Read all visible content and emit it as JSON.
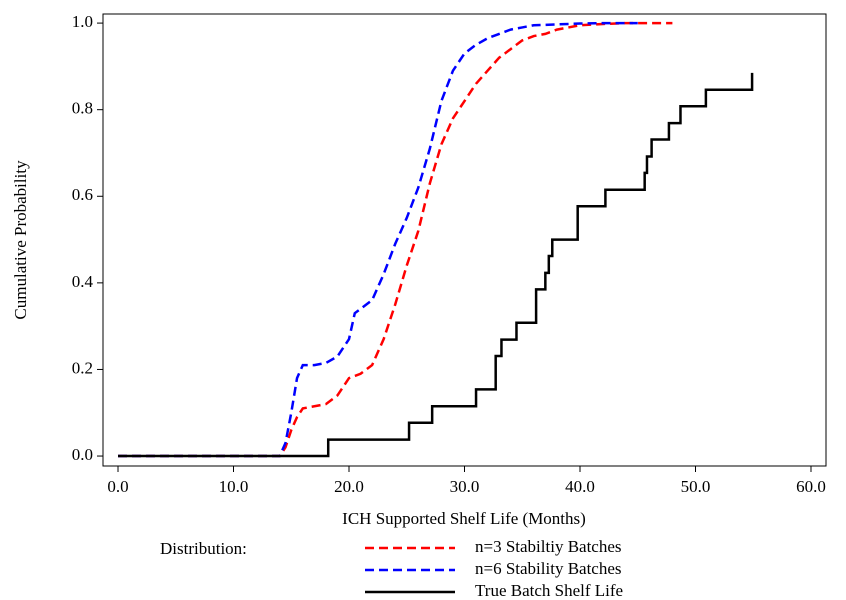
{
  "chart_data": {
    "type": "line",
    "x_label": "ICH Supported Shelf Life (Months)",
    "y_label": "Cumulative Probability",
    "legend_title": "Distribution:",
    "xlim": [
      -1.3,
      61.3
    ],
    "ylim": [
      -0.023,
      1.021
    ],
    "xticks": [
      {
        "value": 0,
        "label": "0.0"
      },
      {
        "value": 10,
        "label": "10.0"
      },
      {
        "value": 20,
        "label": "20.0"
      },
      {
        "value": 30,
        "label": "30.0"
      },
      {
        "value": 40,
        "label": "40.0"
      },
      {
        "value": 50,
        "label": "50.0"
      },
      {
        "value": 60,
        "label": "60.0"
      }
    ],
    "yticks": [
      {
        "value": 0,
        "label": "0.0"
      },
      0.2,
      0.4,
      0.6,
      0.8,
      {
        "value": 1,
        "label": "1.0"
      }
    ],
    "series": [
      {
        "name": "n=3 Stabiltiy Batches",
        "color": "#ff0000",
        "dashed": true,
        "x": [
          0,
          14,
          14.5,
          15,
          15.5,
          16,
          17,
          18,
          19,
          20,
          21,
          22,
          23,
          24,
          25,
          26,
          27,
          28,
          29,
          30,
          31,
          32,
          33,
          34,
          35,
          36,
          37,
          38,
          39,
          40,
          42,
          44,
          48
        ],
        "values": [
          0,
          0,
          0.02,
          0.06,
          0.09,
          0.11,
          0.115,
          0.12,
          0.14,
          0.18,
          0.19,
          0.21,
          0.27,
          0.35,
          0.44,
          0.52,
          0.63,
          0.72,
          0.78,
          0.82,
          0.86,
          0.89,
          0.92,
          0.94,
          0.96,
          0.97,
          0.975,
          0.985,
          0.99,
          0.995,
          0.998,
          1.0,
          1.0
        ]
      },
      {
        "name": "n=6 Stability Batches",
        "color": "#0000ff",
        "dashed": true,
        "x": [
          0,
          14,
          14.5,
          15,
          15.5,
          16,
          17,
          18,
          19,
          20,
          20.5,
          21,
          22,
          23,
          24,
          25,
          26,
          27,
          28,
          29,
          30,
          31,
          32,
          33,
          34,
          35,
          36,
          38,
          40,
          42,
          45
        ],
        "values": [
          0,
          0,
          0.03,
          0.1,
          0.18,
          0.21,
          0.21,
          0.215,
          0.23,
          0.27,
          0.33,
          0.34,
          0.36,
          0.42,
          0.49,
          0.55,
          0.62,
          0.71,
          0.82,
          0.89,
          0.93,
          0.95,
          0.965,
          0.975,
          0.985,
          0.99,
          0.995,
          0.997,
          0.999,
          1.0,
          1.0
        ]
      },
      {
        "name": "True Batch Shelf Life",
        "color": "#000000",
        "dashed": false,
        "x": [
          0,
          18.2,
          18.2,
          25.2,
          25.2,
          27.2,
          27.2,
          31,
          31,
          32.7,
          32.7,
          33.2,
          33.2,
          34.5,
          34.5,
          36.2,
          36.2,
          37,
          37,
          37.3,
          37.3,
          37.6,
          37.6,
          39.8,
          39.8,
          42.2,
          42.2,
          45.6,
          45.6,
          45.8,
          45.8,
          46.2,
          46.2,
          47.7,
          47.7,
          48.7,
          48.7,
          50.9,
          50.9,
          54.9,
          54.9
        ],
        "values": [
          0,
          0,
          0.038,
          0.038,
          0.077,
          0.077,
          0.115,
          0.115,
          0.154,
          0.154,
          0.231,
          0.231,
          0.269,
          0.269,
          0.308,
          0.308,
          0.385,
          0.385,
          0.423,
          0.423,
          0.462,
          0.462,
          0.5,
          0.5,
          0.577,
          0.577,
          0.615,
          0.615,
          0.654,
          0.654,
          0.692,
          0.692,
          0.731,
          0.731,
          0.769,
          0.769,
          0.808,
          0.808,
          0.846,
          0.846,
          0.885
        ]
      }
    ]
  }
}
